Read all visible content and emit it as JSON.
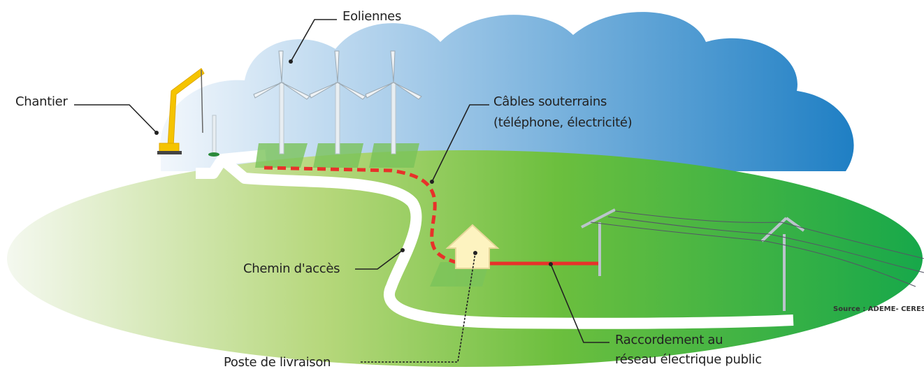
{
  "labels": {
    "eoliennes": "Eoliennes",
    "chantier": "Chantier",
    "cables": [
      "Câbles souterrains",
      "(téléphone, électricité)"
    ],
    "chemin": "Chemin d'accès",
    "poste": "Poste de livraison",
    "raccordement": [
      "Raccordement au",
      "réseau électrique public"
    ],
    "source": "Source : ADEME- CERES"
  }
}
